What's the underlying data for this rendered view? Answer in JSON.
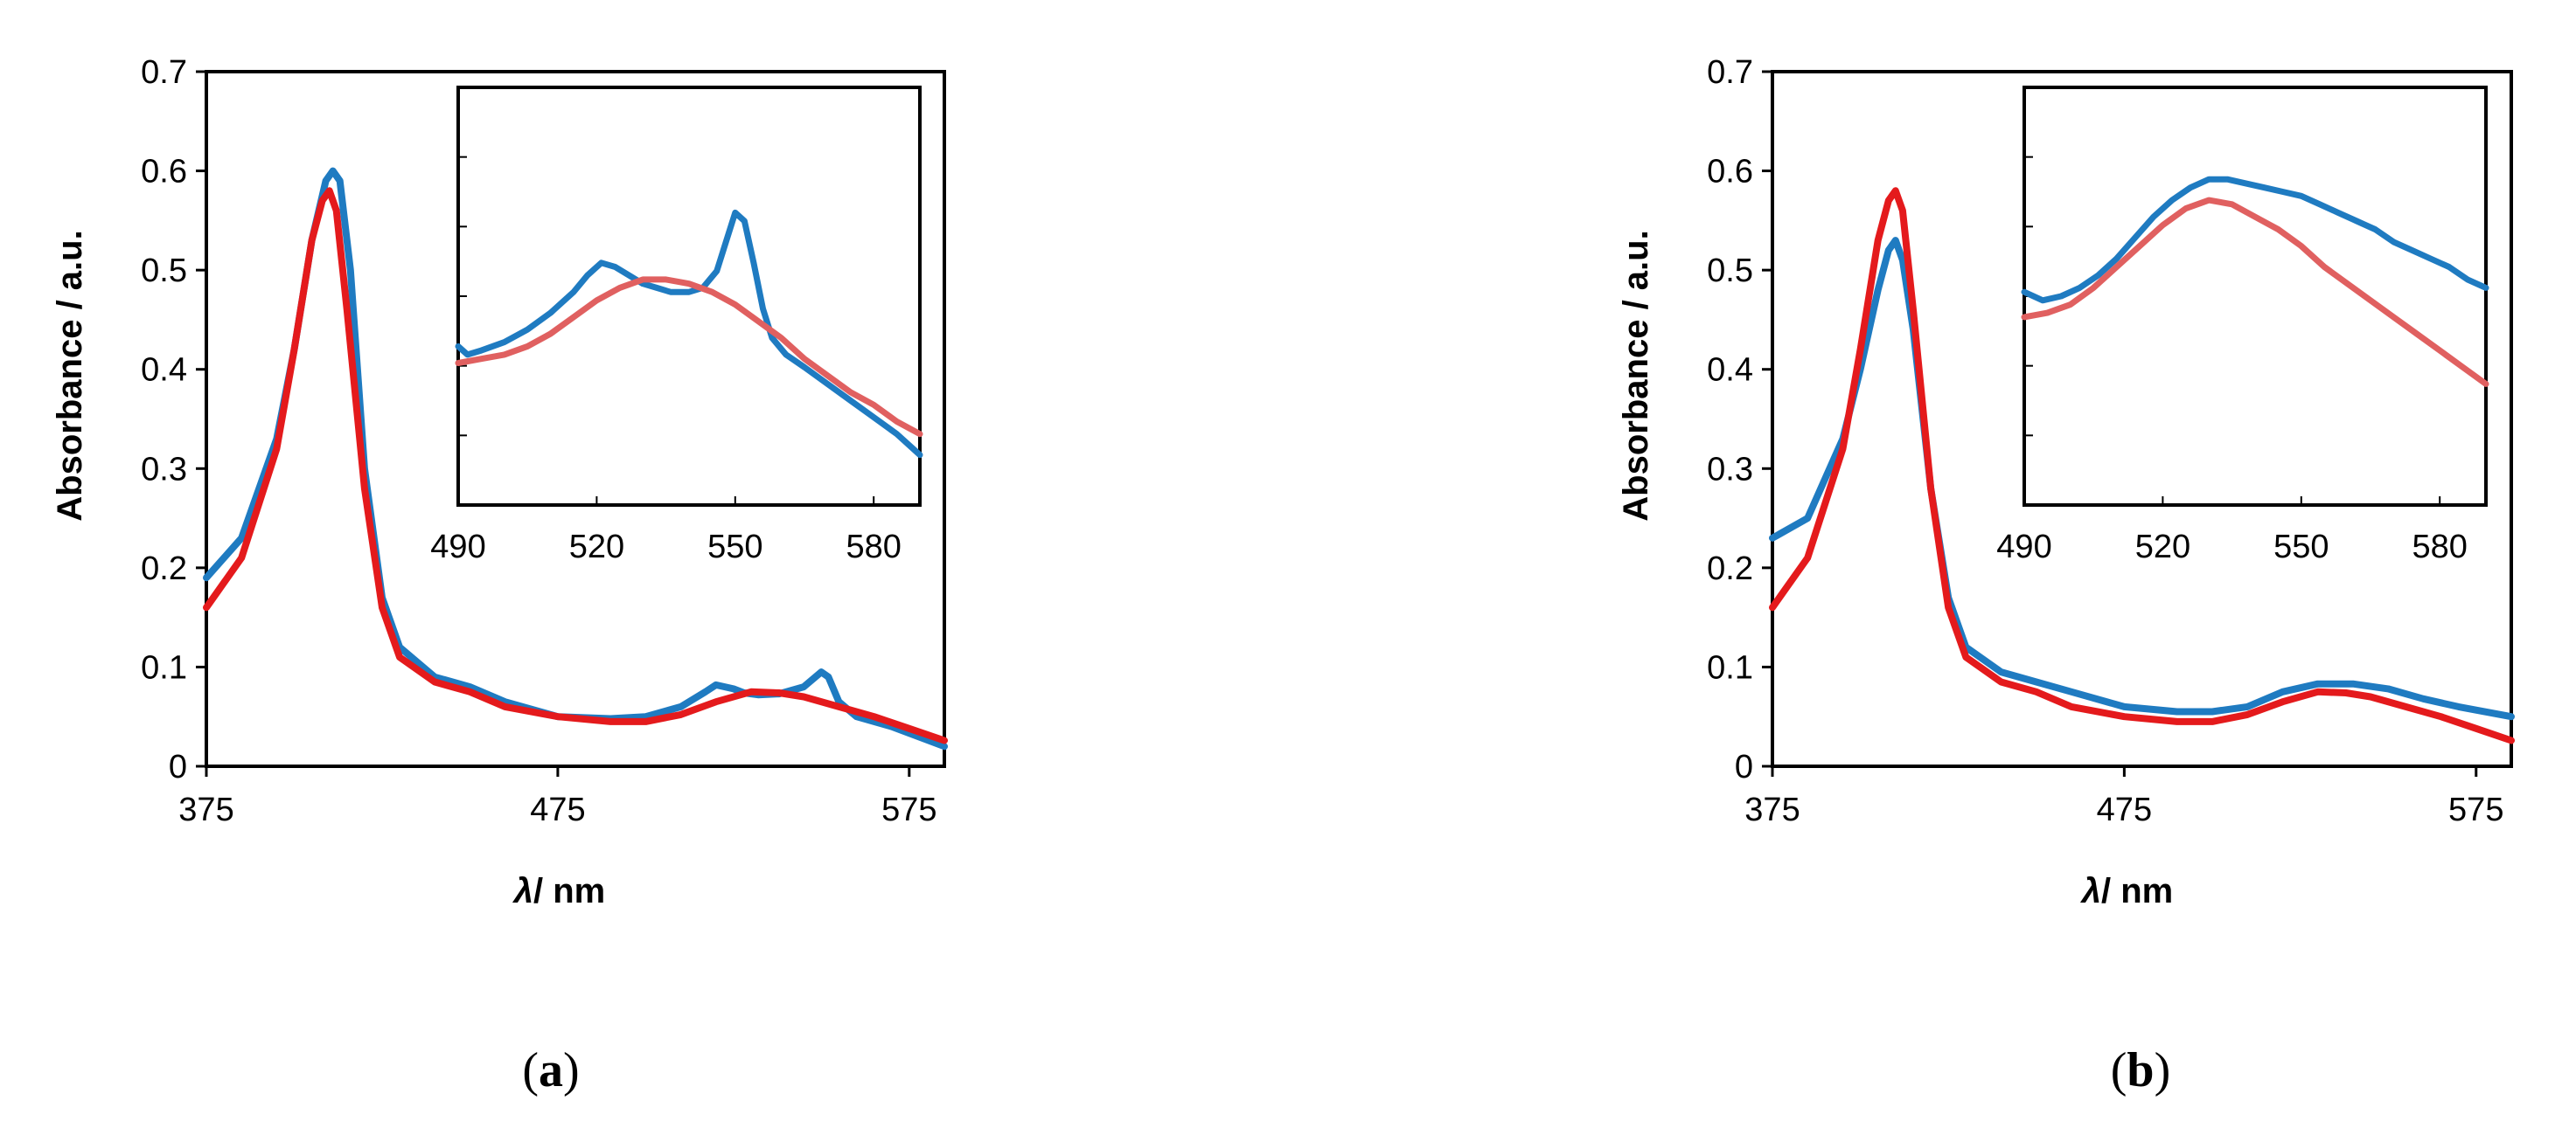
{
  "figure": {
    "panel_labels": [
      {
        "open": "(",
        "letter": "a",
        "close": ")"
      },
      {
        "open": "(",
        "letter": "b",
        "close": ")"
      }
    ]
  },
  "colors": {
    "blue": "#1f7bc1",
    "red": "#e41a1c",
    "inset_red": "#e06060"
  },
  "chart_data": [
    {
      "panel": "a",
      "type": "line",
      "xlabel_symbol": "λ",
      "xlabel_unit": "/ nm",
      "ylabel": "Absorbance  / a.u.",
      "xlim": [
        375,
        585
      ],
      "ylim": [
        0,
        0.7
      ],
      "xticks": [
        375,
        475,
        575
      ],
      "yticks": [
        0,
        0.1,
        0.2,
        0.3,
        0.4,
        0.5,
        0.6,
        0.7
      ],
      "series": [
        {
          "color": "#1f7bc1",
          "x": [
            375,
            385,
            395,
            400,
            405,
            409,
            411,
            413,
            416,
            420,
            425,
            430,
            440,
            450,
            460,
            475,
            490,
            500,
            510,
            517,
            520,
            525,
            528,
            532,
            538,
            545,
            550,
            552,
            555,
            560,
            570,
            585
          ],
          "y": [
            0.19,
            0.23,
            0.33,
            0.42,
            0.53,
            0.59,
            0.6,
            0.59,
            0.5,
            0.3,
            0.17,
            0.12,
            0.09,
            0.08,
            0.065,
            0.05,
            0.048,
            0.05,
            0.06,
            0.075,
            0.082,
            0.078,
            0.074,
            0.072,
            0.073,
            0.08,
            0.095,
            0.09,
            0.065,
            0.05,
            0.04,
            0.02
          ]
        },
        {
          "color": "#e41a1c",
          "x": [
            375,
            385,
            395,
            400,
            405,
            408,
            410,
            412,
            415,
            420,
            425,
            430,
            440,
            450,
            460,
            475,
            490,
            500,
            510,
            520,
            530,
            538,
            545,
            555,
            565,
            575,
            585
          ],
          "y": [
            0.16,
            0.21,
            0.32,
            0.42,
            0.53,
            0.57,
            0.58,
            0.56,
            0.46,
            0.28,
            0.16,
            0.11,
            0.085,
            0.075,
            0.06,
            0.05,
            0.045,
            0.045,
            0.052,
            0.065,
            0.075,
            0.074,
            0.07,
            0.06,
            0.05,
            0.038,
            0.026
          ]
        }
      ],
      "inset": {
        "xlim": [
          490,
          590
        ],
        "xticks": [
          490,
          520,
          550,
          580
        ],
        "ylim": [
          0,
          1
        ],
        "series": [
          {
            "color": "#1f7bc1",
            "x": [
              490,
              492,
              495,
              500,
              505,
              510,
              515,
              518,
              521,
              524,
              527,
              530,
              533,
              536,
              540,
              543,
              546,
              548,
              550,
              552,
              554,
              556,
              558,
              561,
              565,
              570,
              575,
              580,
              585,
              590
            ],
            "y": [
              0.38,
              0.36,
              0.37,
              0.39,
              0.42,
              0.46,
              0.51,
              0.55,
              0.58,
              0.57,
              0.55,
              0.53,
              0.52,
              0.51,
              0.51,
              0.52,
              0.56,
              0.63,
              0.7,
              0.68,
              0.58,
              0.47,
              0.4,
              0.36,
              0.33,
              0.29,
              0.25,
              0.21,
              0.17,
              0.12
            ]
          },
          {
            "color": "#e06060",
            "x": [
              490,
              495,
              500,
              505,
              510,
              515,
              520,
              525,
              530,
              535,
              540,
              545,
              550,
              555,
              560,
              565,
              570,
              575,
              580,
              585,
              590
            ],
            "y": [
              0.34,
              0.35,
              0.36,
              0.38,
              0.41,
              0.45,
              0.49,
              0.52,
              0.54,
              0.54,
              0.53,
              0.51,
              0.48,
              0.44,
              0.4,
              0.35,
              0.31,
              0.27,
              0.24,
              0.2,
              0.17
            ]
          }
        ]
      }
    },
    {
      "panel": "b",
      "type": "line",
      "xlabel_symbol": "λ",
      "xlabel_unit": "/ nm",
      "ylabel": "Absorbance  / a.u.",
      "xlim": [
        375,
        585
      ],
      "ylim": [
        0,
        0.7
      ],
      "xticks": [
        375,
        475,
        575
      ],
      "yticks": [
        0,
        0.1,
        0.2,
        0.3,
        0.4,
        0.5,
        0.6,
        0.7
      ],
      "series": [
        {
          "color": "#1f7bc1",
          "x": [
            375,
            385,
            395,
            400,
            405,
            408,
            410,
            412,
            415,
            420,
            425,
            430,
            440,
            450,
            460,
            475,
            490,
            500,
            510,
            520,
            530,
            540,
            550,
            560,
            570,
            585
          ],
          "y": [
            0.23,
            0.25,
            0.33,
            0.4,
            0.48,
            0.52,
            0.53,
            0.51,
            0.44,
            0.28,
            0.17,
            0.12,
            0.095,
            0.085,
            0.075,
            0.06,
            0.055,
            0.055,
            0.06,
            0.075,
            0.083,
            0.083,
            0.078,
            0.068,
            0.06,
            0.05
          ]
        },
        {
          "color": "#e41a1c",
          "x": [
            375,
            385,
            395,
            400,
            405,
            408,
            410,
            412,
            415,
            420,
            425,
            430,
            440,
            450,
            460,
            475,
            490,
            500,
            510,
            520,
            530,
            538,
            545,
            555,
            565,
            575,
            585
          ],
          "y": [
            0.16,
            0.21,
            0.32,
            0.42,
            0.53,
            0.57,
            0.58,
            0.56,
            0.46,
            0.28,
            0.16,
            0.11,
            0.085,
            0.075,
            0.06,
            0.05,
            0.045,
            0.045,
            0.052,
            0.065,
            0.075,
            0.074,
            0.07,
            0.06,
            0.05,
            0.038,
            0.026
          ]
        }
      ],
      "inset": {
        "xlim": [
          490,
          590
        ],
        "xticks": [
          490,
          520,
          550,
          580
        ],
        "ylim": [
          0,
          1
        ],
        "series": [
          {
            "color": "#1f7bc1",
            "x": [
              490,
              494,
              498,
              502,
              506,
              510,
              514,
              518,
              522,
              526,
              530,
              534,
              538,
              542,
              546,
              550,
              554,
              558,
              562,
              566,
              570,
              574,
              578,
              582,
              586,
              590
            ],
            "y": [
              0.51,
              0.49,
              0.5,
              0.52,
              0.55,
              0.59,
              0.64,
              0.69,
              0.73,
              0.76,
              0.78,
              0.78,
              0.77,
              0.76,
              0.75,
              0.74,
              0.72,
              0.7,
              0.68,
              0.66,
              0.63,
              0.61,
              0.59,
              0.57,
              0.54,
              0.52
            ]
          },
          {
            "color": "#e06060",
            "x": [
              490,
              495,
              500,
              505,
              510,
              515,
              520,
              525,
              530,
              535,
              540,
              545,
              550,
              555,
              560,
              565,
              570,
              575,
              580,
              585,
              590
            ],
            "y": [
              0.45,
              0.46,
              0.48,
              0.52,
              0.57,
              0.62,
              0.67,
              0.71,
              0.73,
              0.72,
              0.69,
              0.66,
              0.62,
              0.57,
              0.53,
              0.49,
              0.45,
              0.41,
              0.37,
              0.33,
              0.29
            ]
          }
        ]
      }
    }
  ]
}
